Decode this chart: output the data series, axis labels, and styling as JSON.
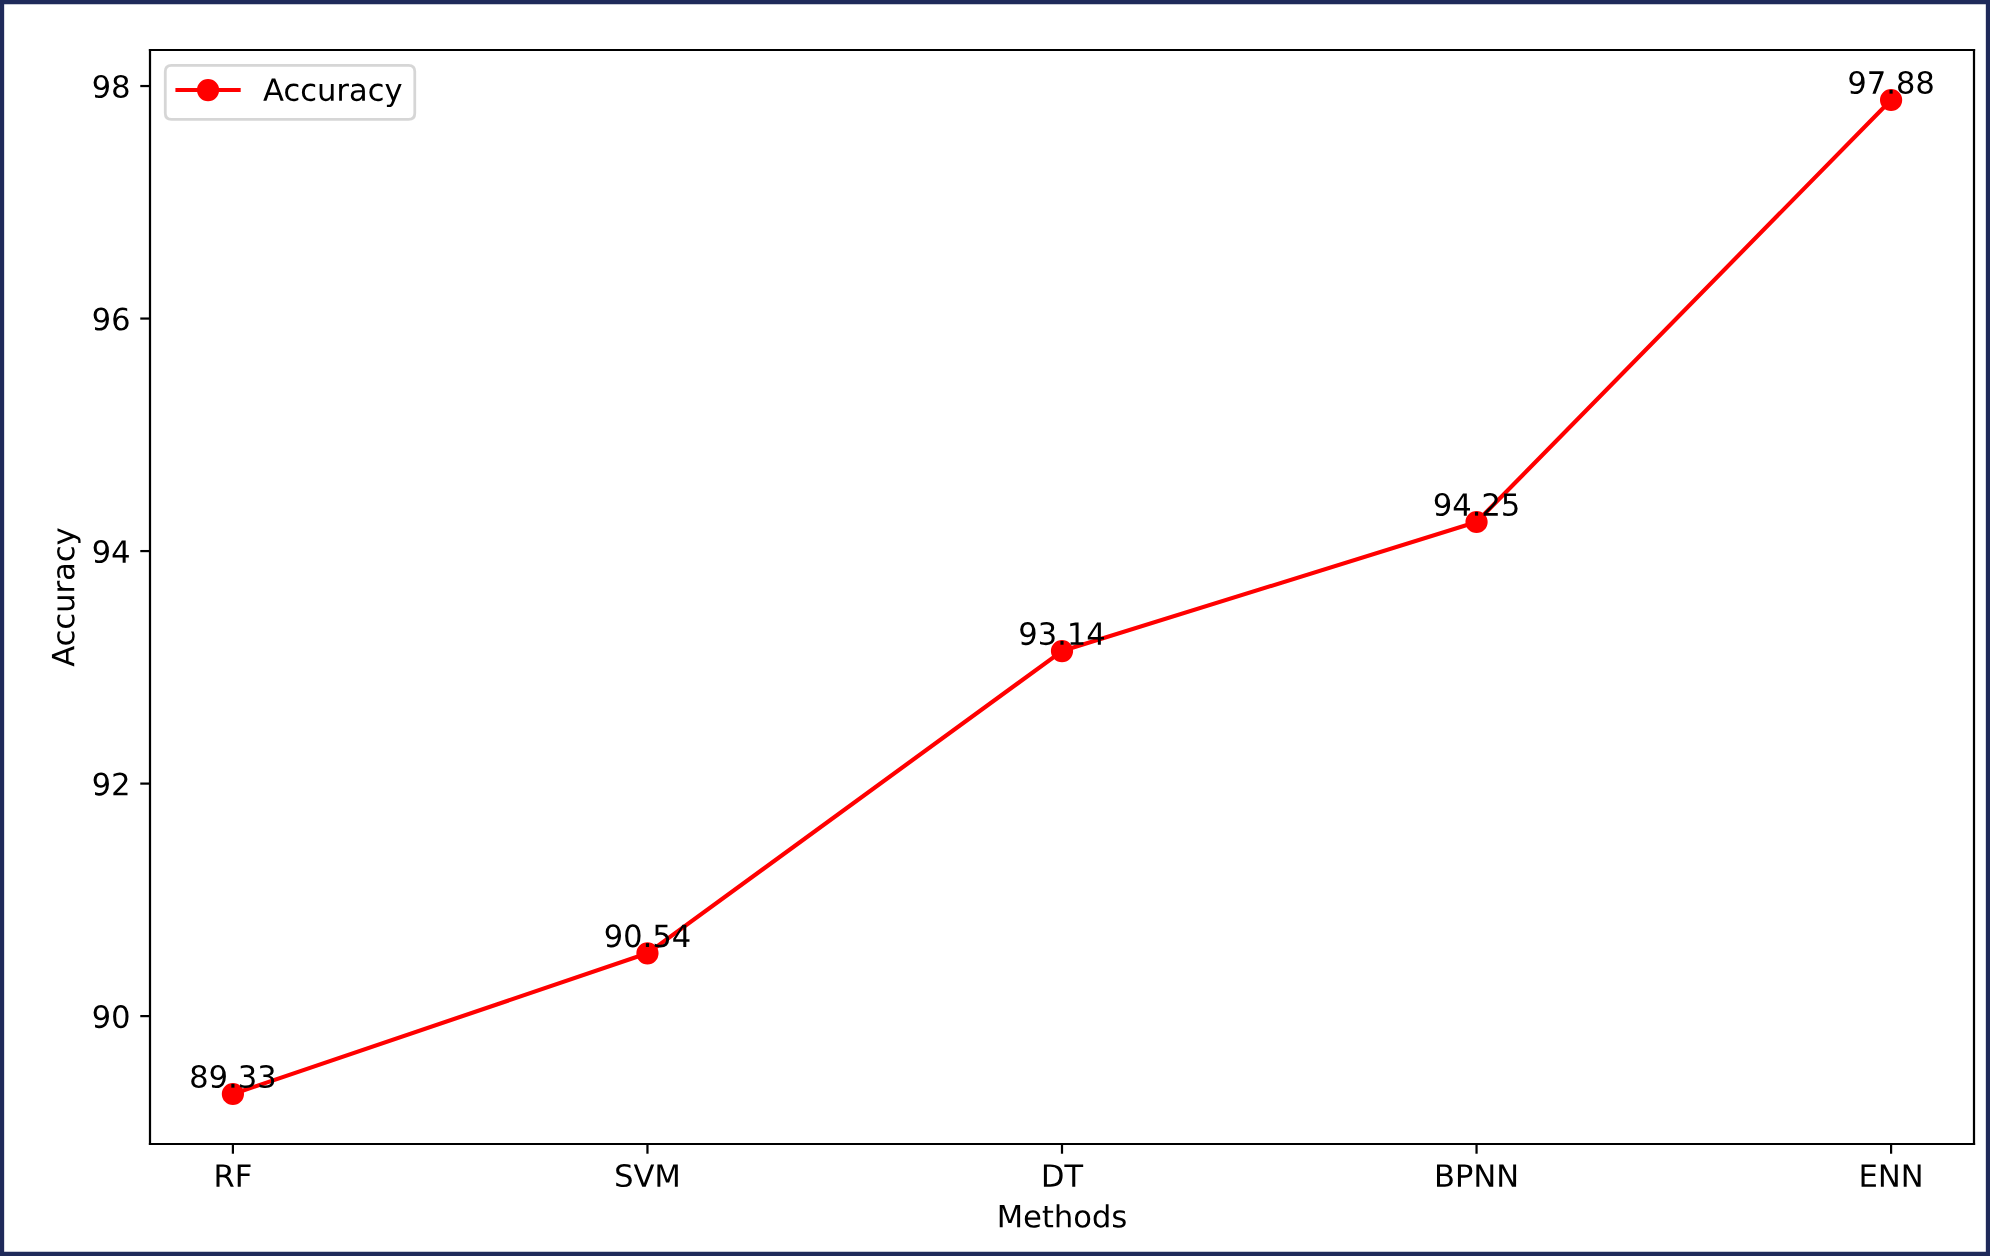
{
  "chart_data": {
    "type": "line",
    "xlabel": "Methods",
    "ylabel": "Accuracy",
    "categories": [
      "RF",
      "SVM",
      "DT",
      "BPNN",
      "ENN"
    ],
    "series": [
      {
        "name": "Accuracy",
        "color": "#ff0000",
        "values": [
          89.33,
          90.54,
          93.14,
          94.25,
          97.88
        ]
      }
    ],
    "ylim": [
      88.9,
      98.31
    ],
    "yticks": [
      90,
      92,
      94,
      96,
      98
    ],
    "marker": "circle",
    "line_style": "solid",
    "legend": "top left",
    "data_labels": true,
    "grid": false
  }
}
